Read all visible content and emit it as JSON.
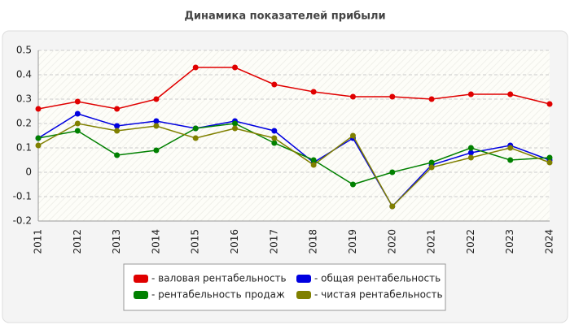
{
  "chart_data": {
    "type": "line",
    "title": "Динамика показателей прибыли",
    "categories": [
      "2011",
      "2012",
      "2013",
      "2014",
      "2015",
      "2016",
      "2017",
      "2018",
      "2019",
      "2020",
      "2021",
      "2022",
      "2023",
      "2024"
    ],
    "series": [
      {
        "name": "- валовая рентабельность",
        "color": "#e00000",
        "values": [
          0.26,
          0.29,
          0.26,
          0.3,
          0.43,
          0.43,
          0.36,
          0.33,
          0.31,
          0.31,
          0.3,
          0.32,
          0.32,
          0.28
        ]
      },
      {
        "name": "- общая рентабельность",
        "color": "#0000e0",
        "values": [
          0.14,
          0.24,
          0.19,
          0.21,
          0.18,
          0.21,
          0.17,
          0.04,
          0.14,
          -0.14,
          0.03,
          0.08,
          0.11,
          0.05
        ]
      },
      {
        "name": "- рентабельность продаж",
        "color": "#008000",
        "values": [
          0.14,
          0.17,
          0.07,
          0.09,
          0.18,
          0.2,
          0.12,
          0.05,
          -0.05,
          0,
          0.04,
          0.1,
          0.05,
          0.06
        ]
      },
      {
        "name": "- чистая рентабельность",
        "color": "#808000",
        "values": [
          0.11,
          0.2,
          0.17,
          0.19,
          0.14,
          0.18,
          0.14,
          0.03,
          0.15,
          -0.14,
          0.02,
          0.06,
          0.1,
          0.04
        ]
      }
    ],
    "ylim": [
      -0.2,
      0.5
    ],
    "yticks": [
      -0.2,
      -0.1,
      0,
      0.1,
      0.2,
      0.3,
      0.4,
      0.5
    ],
    "grid": true,
    "legend": "bottom"
  }
}
